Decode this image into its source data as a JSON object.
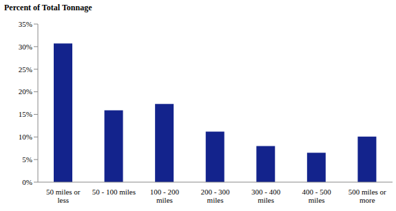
{
  "chart_data": {
    "type": "bar",
    "title": "Percent of Total Tonnage",
    "categories": [
      "50 miles or less",
      "50 - 100 miles",
      "100 - 200 miles",
      "200 - 300 miles",
      "300 - 400 miles",
      "400 - 500 miles",
      "500 miles or more"
    ],
    "values": [
      30.7,
      15.9,
      17.3,
      11.2,
      8.0,
      6.5,
      10.1
    ],
    "color": "#13238c",
    "ylim": [
      0,
      35
    ],
    "yticks": [
      {
        "value": 0,
        "label": "0%"
      },
      {
        "value": 5,
        "label": "5%"
      },
      {
        "value": 10,
        "label": "10%"
      },
      {
        "value": 15,
        "label": "15%"
      },
      {
        "value": 20,
        "label": "20%"
      },
      {
        "value": 25,
        "label": "25%"
      },
      {
        "value": 30,
        "label": "30%"
      },
      {
        "value": 35,
        "label": "35%"
      }
    ],
    "grid": false
  }
}
